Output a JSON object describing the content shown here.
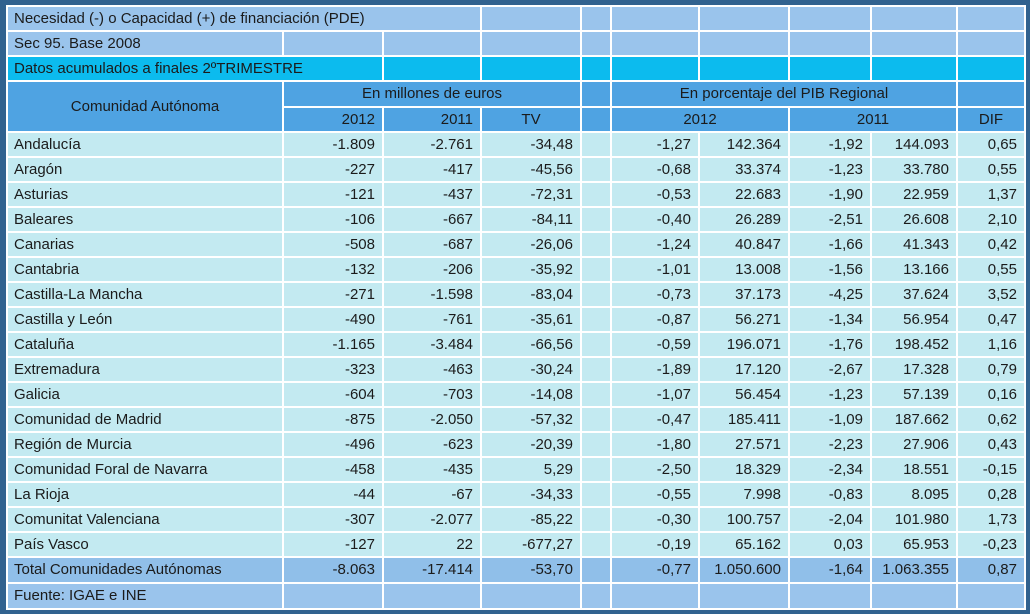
{
  "titles": {
    "line1": "Necesidad (-) o Capacidad (+) de financiación (PDE)",
    "line2": "Sec 95. Base 2008",
    "line3": "Datos acumulados a finales 2ºTRIMESTRE"
  },
  "table": {
    "corner_header": "Comunidad Autónoma",
    "group_millones": "En millones de euros",
    "group_pib": "En porcentaje del PIB Regional",
    "col_2012": "2012",
    "col_2011": "2011",
    "col_tv": "TV",
    "pib_2012": "2012",
    "pib_2011": "2011",
    "col_dif": "DIF",
    "rows": [
      [
        "Andalucía",
        "-1.809",
        "-2.761",
        "-34,48",
        "-1,27",
        "142.364",
        "-1,92",
        "144.093",
        "0,65"
      ],
      [
        "Aragón",
        "-227",
        "-417",
        "-45,56",
        "-0,68",
        "33.374",
        "-1,23",
        "33.780",
        "0,55"
      ],
      [
        "Asturias",
        "-121",
        "-437",
        "-72,31",
        "-0,53",
        "22.683",
        "-1,90",
        "22.959",
        "1,37"
      ],
      [
        "Baleares",
        "-106",
        "-667",
        "-84,11",
        "-0,40",
        "26.289",
        "-2,51",
        "26.608",
        "2,10"
      ],
      [
        "Canarias",
        "-508",
        "-687",
        "-26,06",
        "-1,24",
        "40.847",
        "-1,66",
        "41.343",
        "0,42"
      ],
      [
        "Cantabria",
        "-132",
        "-206",
        "-35,92",
        "-1,01",
        "13.008",
        "-1,56",
        "13.166",
        "0,55"
      ],
      [
        "Castilla-La Mancha",
        "-271",
        "-1.598",
        "-83,04",
        "-0,73",
        "37.173",
        "-4,25",
        "37.624",
        "3,52"
      ],
      [
        "Castilla y León",
        "-490",
        "-761",
        "-35,61",
        "-0,87",
        "56.271",
        "-1,34",
        "56.954",
        "0,47"
      ],
      [
        "Cataluña",
        "-1.165",
        "-3.484",
        "-66,56",
        "-0,59",
        "196.071",
        "-1,76",
        "198.452",
        "1,16"
      ],
      [
        "Extremadura",
        "-323",
        "-463",
        "-30,24",
        "-1,89",
        "17.120",
        "-2,67",
        "17.328",
        "0,79"
      ],
      [
        "Galicia",
        "-604",
        "-703",
        "-14,08",
        "-1,07",
        "56.454",
        "-1,23",
        "57.139",
        "0,16"
      ],
      [
        "Comunidad de Madrid",
        "-875",
        "-2.050",
        "-57,32",
        "-0,47",
        "185.411",
        "-1,09",
        "187.662",
        "0,62"
      ],
      [
        "Región de Murcia",
        "-496",
        "-623",
        "-20,39",
        "-1,80",
        "27.571",
        "-2,23",
        "27.906",
        "0,43"
      ],
      [
        "Comunidad Foral de Navarra",
        "-458",
        "-435",
        "5,29",
        "-2,50",
        "18.329",
        "-2,34",
        "18.551",
        "-0,15"
      ],
      [
        "La Rioja",
        "-44",
        "-67",
        "-34,33",
        "-0,55",
        "7.998",
        "-0,83",
        "8.095",
        "0,28"
      ],
      [
        "Comunitat Valenciana",
        "-307",
        "-2.077",
        "-85,22",
        "-0,30",
        "100.757",
        "-2,04",
        "101.980",
        "1,73"
      ],
      [
        "País Vasco",
        "-127",
        "22",
        "-677,27",
        "-0,19",
        "65.162",
        "0,03",
        "65.953",
        "-0,23"
      ]
    ],
    "total_row": [
      "Total Comunidades Autónomas",
      "-8.063",
      "-17.414",
      "-53,70",
      "-0,77",
      "1.050.600",
      "-1,64",
      "1.063.355",
      "0,87"
    ]
  },
  "footer": {
    "source": "Fuente: IGAE e INE"
  },
  "colors": {
    "frame": "#31628F",
    "title_light_blue": "#9AC4EC",
    "cyan_band": "#0CBBEE",
    "header_blue": "#4FA3E2",
    "data_cell": "#C3EAF1",
    "total_row": "#90BFE9",
    "gridline": "#FFFFFF",
    "text": "#1B1B1B"
  }
}
